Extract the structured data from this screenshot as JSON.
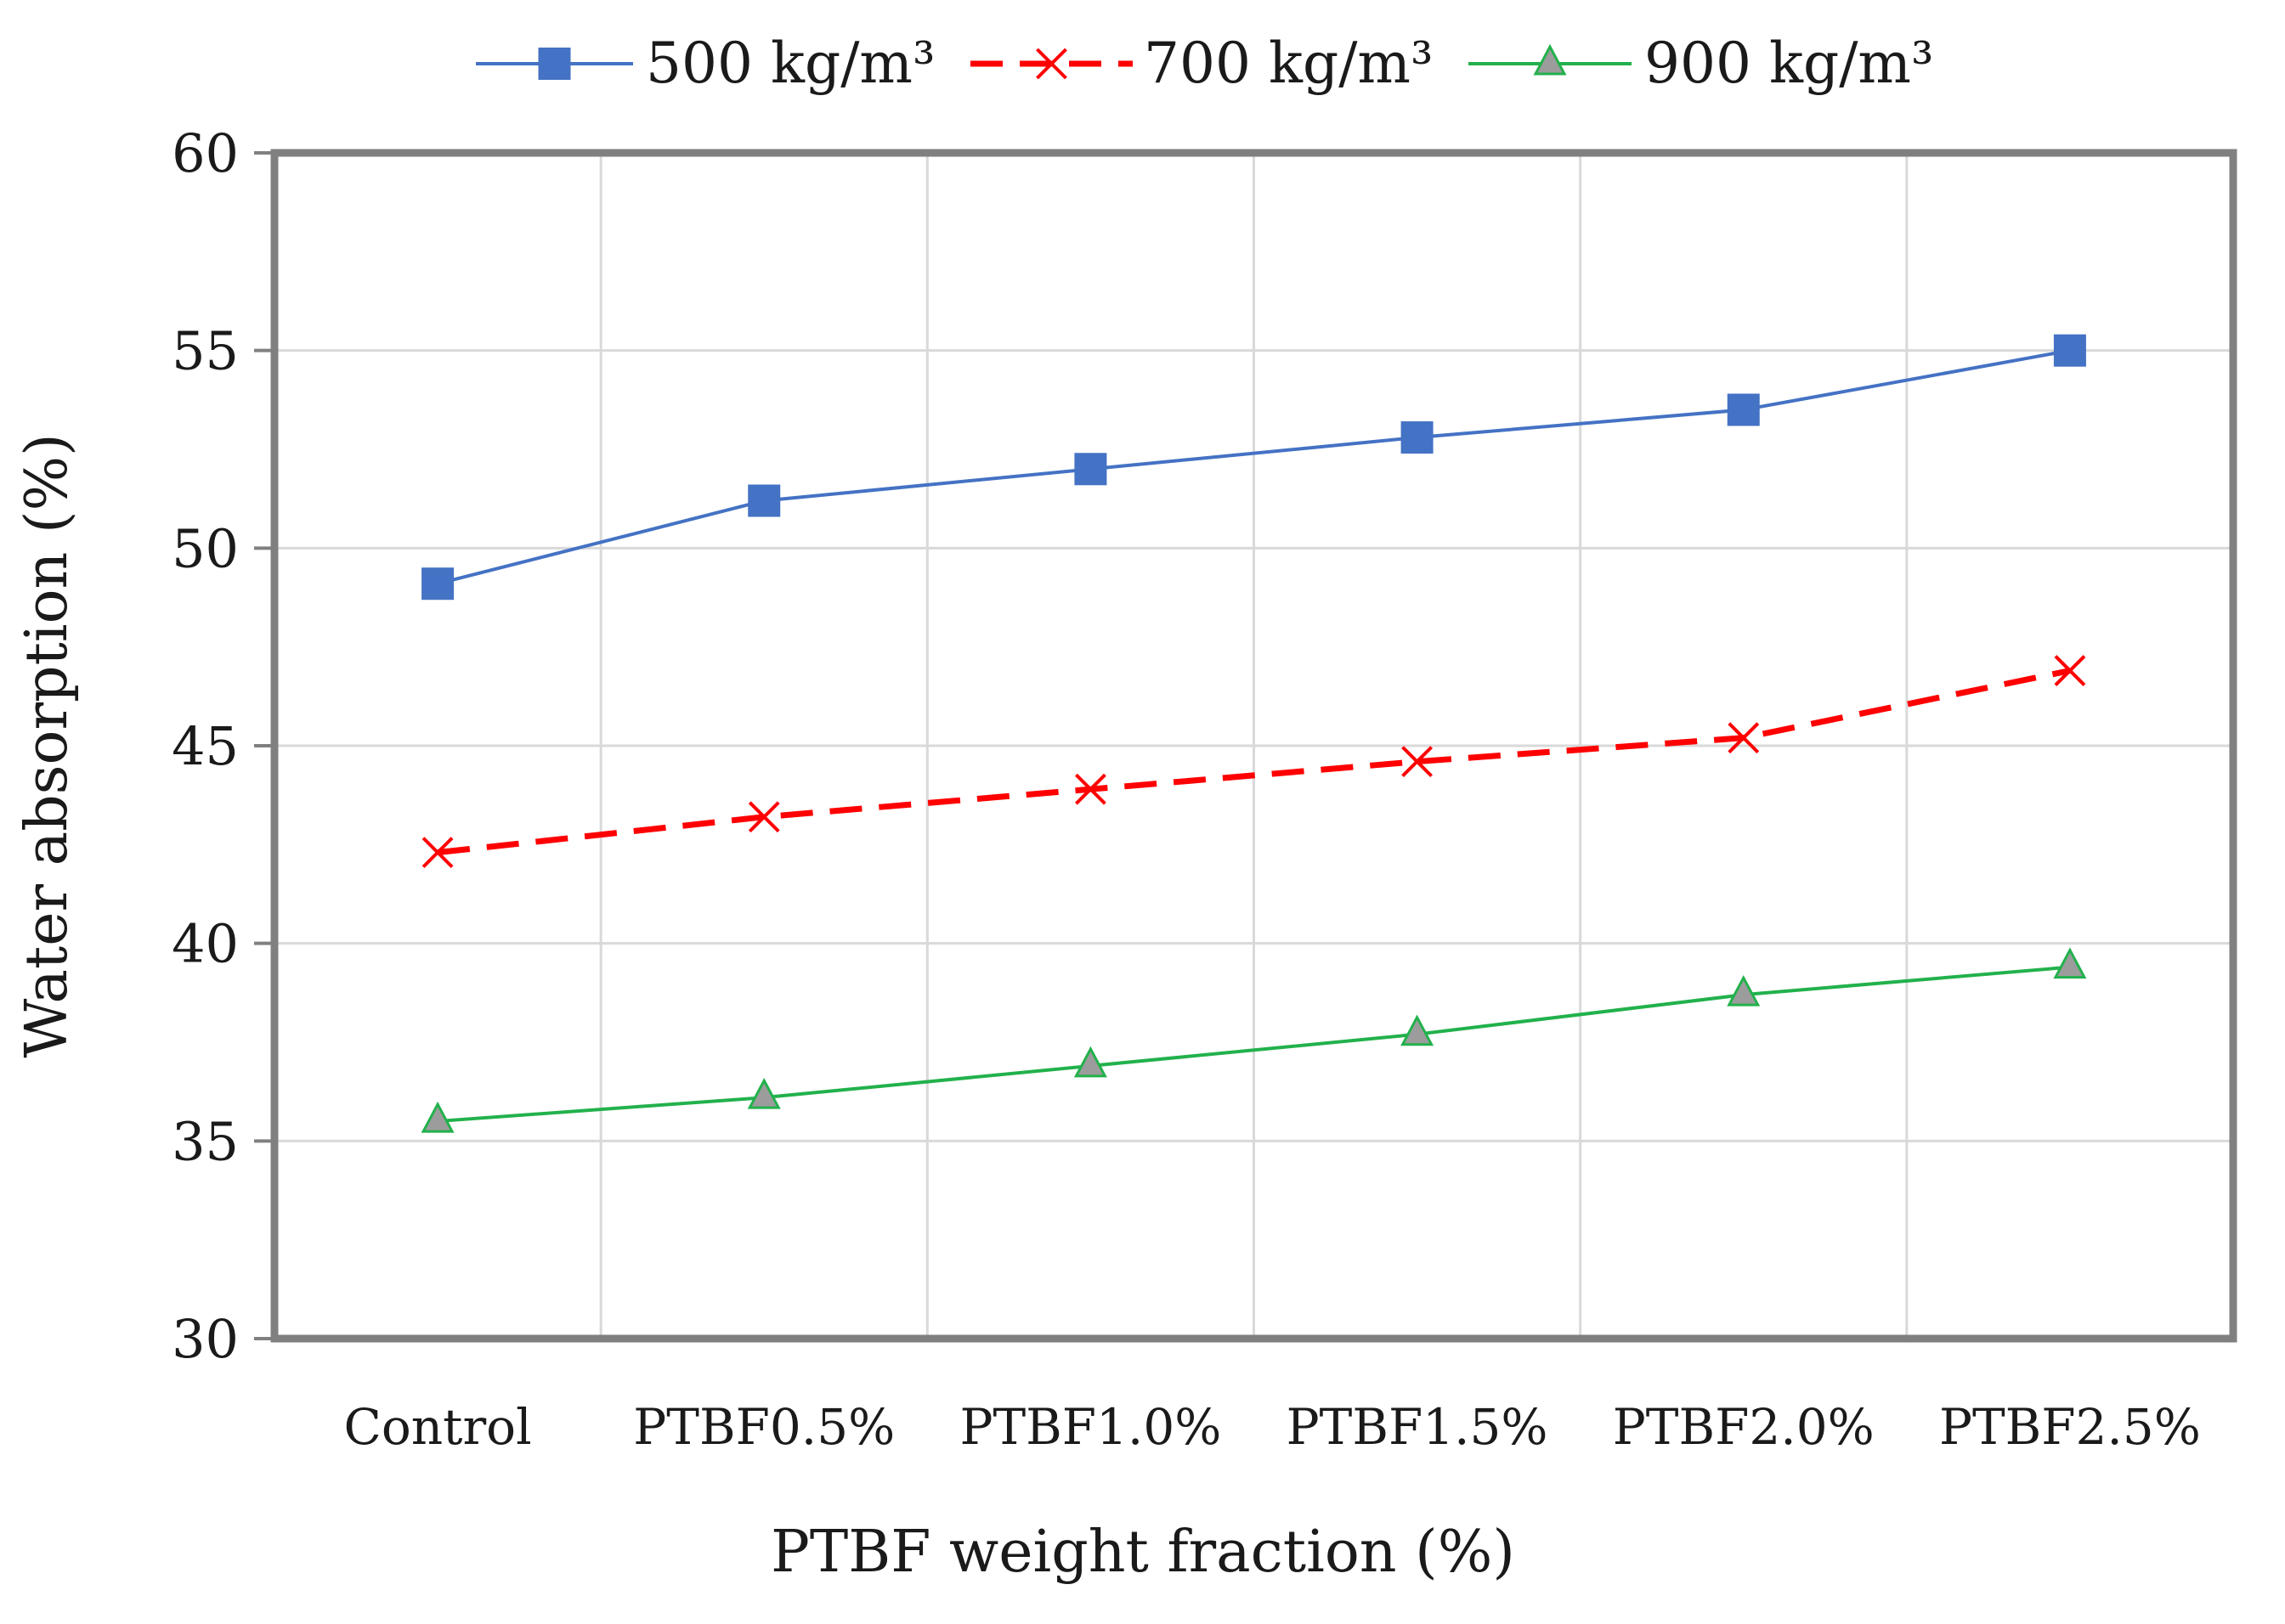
{
  "chart_data": {
    "type": "line",
    "title": "",
    "xlabel": "PTBF weight fraction (%)",
    "ylabel": "Water absorption (%)",
    "ylim": [
      30,
      60
    ],
    "yticks": [
      30,
      35,
      40,
      45,
      50,
      55,
      60
    ],
    "ytick_labels": [
      "30",
      "35",
      "40",
      "45",
      "50",
      "55",
      "60"
    ],
    "grid": true,
    "legend_position": "top-center",
    "categories": [
      "Control",
      "PTBF0.5%",
      "PTBF1.0%",
      "PTBF1.5%",
      "PTBF2.0%",
      "PTBF2.5%"
    ],
    "series": [
      {
        "name": "500 kg/m³",
        "values": [
          49.1,
          51.2,
          52.0,
          52.8,
          53.5,
          55.0
        ],
        "color": "#4472c4",
        "marker": "square",
        "line_style": "solid"
      },
      {
        "name": "700 kg/m³",
        "values": [
          42.3,
          43.2,
          43.9,
          44.6,
          45.2,
          46.9
        ],
        "color": "#ff0000",
        "marker": "x",
        "line_style": "dashed"
      },
      {
        "name": "900 kg/m³",
        "values": [
          35.5,
          36.1,
          36.9,
          37.7,
          38.7,
          39.4
        ],
        "color": "#22b14c",
        "marker": "triangle",
        "marker_fill": "#9c9c9c",
        "line_style": "solid"
      }
    ]
  }
}
